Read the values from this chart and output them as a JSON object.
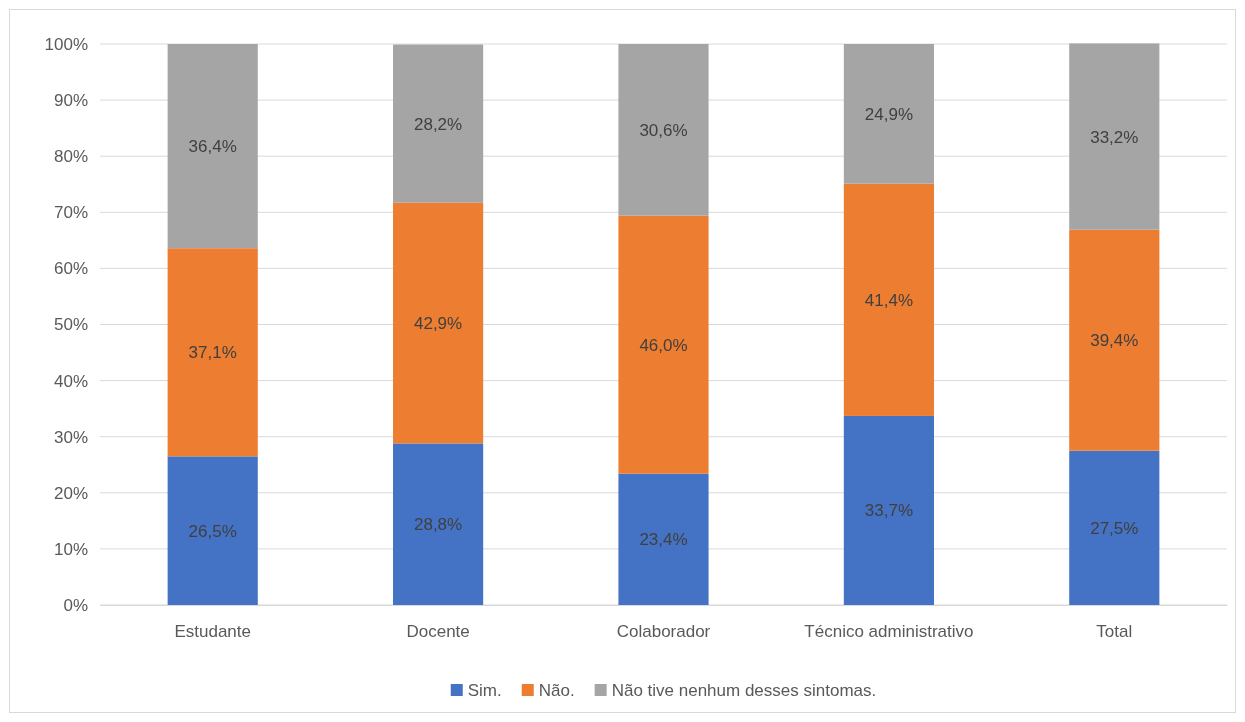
{
  "chart_data": {
    "type": "bar",
    "stacked": true,
    "categories": [
      "Estudante",
      "Docente",
      "Colaborador",
      "Técnico administrativo",
      "Total"
    ],
    "series": [
      {
        "name": "Sim.",
        "color": "#4472c4",
        "values": [
          26.5,
          28.8,
          23.4,
          33.7,
          27.5
        ],
        "value_labels": [
          "26,5%",
          "28,8%",
          "23,4%",
          "33,7%",
          "27,5%"
        ]
      },
      {
        "name": "Não.",
        "color": "#ed7d31",
        "values": [
          37.1,
          42.9,
          46.0,
          41.4,
          39.4
        ],
        "value_labels": [
          "37,1%",
          "42,9%",
          "46,0%",
          "41,4%",
          "39,4%"
        ]
      },
      {
        "name": "Não tive nenhum desses sintomas.",
        "color": "#a5a5a5",
        "values": [
          36.4,
          28.2,
          30.6,
          24.9,
          33.2
        ],
        "value_labels": [
          "36,4%",
          "28,2%",
          "30,6%",
          "24,9%",
          "33,2%"
        ]
      }
    ],
    "ylim": [
      0,
      100
    ],
    "yticks": [
      {
        "value": 0,
        "label": "0%"
      },
      {
        "value": 10,
        "label": "10%"
      },
      {
        "value": 20,
        "label": "20%"
      },
      {
        "value": 30,
        "label": "30%"
      },
      {
        "value": 40,
        "label": "40%"
      },
      {
        "value": 50,
        "label": "50%"
      },
      {
        "value": 60,
        "label": "60%"
      },
      {
        "value": 70,
        "label": "70%"
      },
      {
        "value": 80,
        "label": "80%"
      },
      {
        "value": 90,
        "label": "90%"
      },
      {
        "value": 100,
        "label": "100%"
      }
    ],
    "grid": "y",
    "legend": "bottom"
  }
}
